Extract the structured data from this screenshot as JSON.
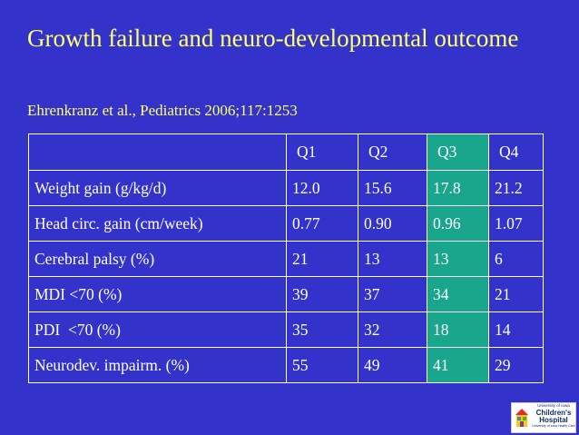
{
  "slide": {
    "title": "Growth failure and neuro-developmental outcome",
    "citation": "Ehrenkranz et al., Pediatrics 2006;117:1253"
  },
  "table": {
    "headers": [
      "",
      "Q1",
      "Q2",
      "Q3",
      "Q4"
    ],
    "highlight_column": "Q3",
    "highlight_color": "#1aa68c",
    "rows": [
      {
        "label": "Weight gain (g/kg/d)",
        "values": [
          "12.0",
          "15.6",
          "17.8",
          "21.2"
        ]
      },
      {
        "label": "Head circ. gain (cm/week)",
        "values": [
          "0.77",
          "0.90",
          "0.96",
          "1.07"
        ]
      },
      {
        "label": "Cerebral palsy (%)",
        "values": [
          "21",
          "13",
          "13",
          "6"
        ]
      },
      {
        "label": "MDI <70 (%)",
        "values": [
          "39",
          "37",
          "34",
          "21"
        ]
      },
      {
        "label": "PDI  <70 (%)",
        "values": [
          "35",
          "32",
          "18",
          "14"
        ]
      },
      {
        "label": "Neurodev. impairm. (%)",
        "values": [
          "55",
          "49",
          "41",
          "29"
        ]
      }
    ]
  },
  "logo": {
    "top": "University of Iowa",
    "main_line1": "Children's",
    "main_line2": "Hospital",
    "bottom": "University of Iowa Health Care",
    "icon": "house-logo-icon"
  },
  "colors": {
    "background": "#3333cc",
    "title_text": "#ffff66",
    "table_text": "#ffffff"
  }
}
